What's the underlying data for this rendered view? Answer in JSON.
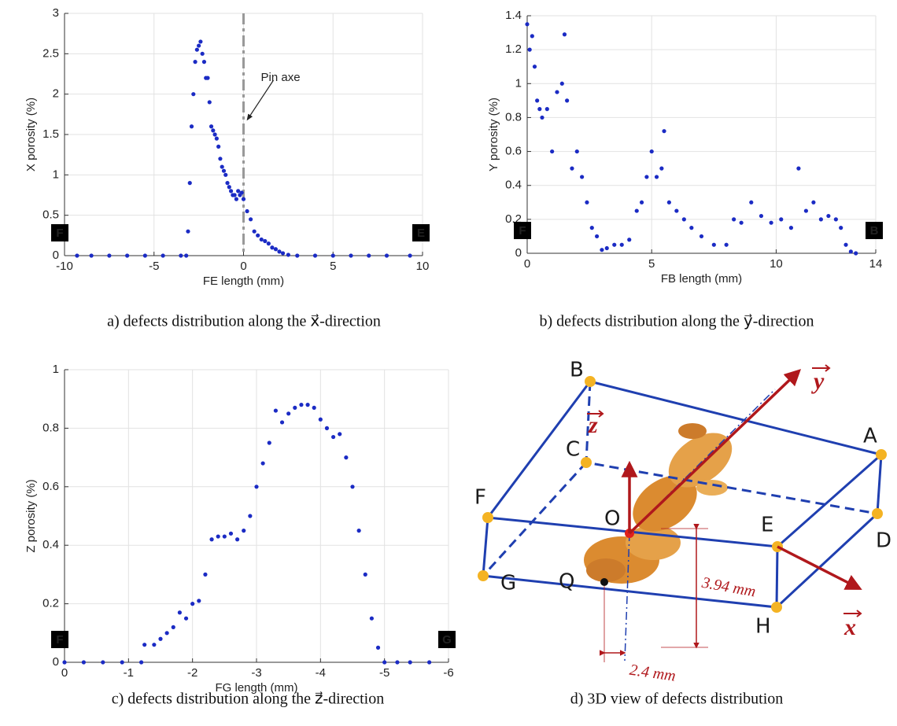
{
  "chart_data": [
    {
      "type": "scatter",
      "caption": "a) defects distribution along the x⃗-direction",
      "xlabel": "FE length (mm)",
      "ylabel": "X porosity (%)",
      "color": "#1b2bc4",
      "xlim": [
        -10,
        10
      ],
      "xticks": [
        -10,
        -5,
        0,
        5,
        10
      ],
      "ylim": [
        0,
        3
      ],
      "yticks": [
        0,
        0.5,
        1,
        1.5,
        2,
        2.5,
        3
      ],
      "grid": true,
      "start_label": "F",
      "end_label": "E",
      "vline": 0,
      "annotation": "Pin axe",
      "x": [
        -9.3,
        -8.5,
        -7.5,
        -6.5,
        -5.5,
        -4.5,
        -3.5,
        -3.2,
        -3.1,
        -3.0,
        -2.9,
        -2.8,
        -2.7,
        -2.6,
        -2.5,
        -2.4,
        -2.3,
        -2.2,
        -2.1,
        -2.0,
        -1.9,
        -1.8,
        -1.7,
        -1.6,
        -1.5,
        -1.4,
        -1.3,
        -1.2,
        -1.1,
        -1.0,
        -0.9,
        -0.8,
        -0.7,
        -0.6,
        -0.5,
        -0.4,
        -0.3,
        -0.2,
        -0.1,
        0,
        0.2,
        0.4,
        0.6,
        0.8,
        1.0,
        1.2,
        1.4,
        1.6,
        1.8,
        2.0,
        2.2,
        2.5,
        3,
        4,
        5,
        6,
        7,
        8,
        9.3
      ],
      "y": [
        0,
        0,
        0,
        0,
        0,
        0,
        0,
        0,
        0.3,
        0.9,
        1.6,
        2.0,
        2.4,
        2.55,
        2.6,
        2.65,
        2.5,
        2.4,
        2.2,
        2.2,
        1.9,
        1.6,
        1.55,
        1.5,
        1.45,
        1.35,
        1.2,
        1.1,
        1.05,
        1.0,
        0.9,
        0.85,
        0.8,
        0.75,
        0.75,
        0.7,
        0.8,
        0.75,
        0.78,
        0.7,
        0.55,
        0.45,
        0.3,
        0.25,
        0.2,
        0.18,
        0.15,
        0.1,
        0.08,
        0.05,
        0.03,
        0.01,
        0,
        0,
        0,
        0,
        0,
        0,
        0
      ]
    },
    {
      "type": "scatter",
      "caption": "b) defects distribution along the y⃗-direction",
      "xlabel": "FB length   (mm)",
      "ylabel": "Y porosity  (%)",
      "color": "#1b2bc4",
      "xlim": [
        0,
        14
      ],
      "xticks": [
        0,
        5,
        10,
        14
      ],
      "ylim": [
        0,
        1.4
      ],
      "yticks": [
        0,
        0.2,
        0.4,
        0.6,
        0.8,
        1,
        1.2,
        1.4
      ],
      "grid": true,
      "start_label": "F",
      "end_label": "B",
      "x": [
        0,
        0.1,
        0.2,
        0.3,
        0.4,
        0.5,
        0.6,
        0.8,
        1.0,
        1.2,
        1.4,
        1.5,
        1.6,
        1.8,
        2.0,
        2.2,
        2.4,
        2.6,
        2.8,
        3.0,
        3.2,
        3.5,
        3.8,
        4.1,
        4.4,
        4.6,
        4.8,
        5.0,
        5.2,
        5.4,
        5.5,
        5.7,
        6.0,
        6.3,
        6.6,
        7.0,
        7.5,
        8.0,
        8.3,
        8.6,
        9.0,
        9.4,
        9.8,
        10.2,
        10.6,
        10.9,
        11.2,
        11.5,
        11.8,
        12.1,
        12.4,
        12.6,
        12.8,
        13.0,
        13.2
      ],
      "y": [
        1.35,
        1.2,
        1.28,
        1.1,
        0.9,
        0.85,
        0.8,
        0.85,
        0.6,
        0.95,
        1.0,
        1.29,
        0.9,
        0.5,
        0.6,
        0.45,
        0.3,
        0.15,
        0.1,
        0.02,
        0.03,
        0.05,
        0.05,
        0.08,
        0.25,
        0.3,
        0.45,
        0.6,
        0.45,
        0.5,
        0.72,
        0.3,
        0.25,
        0.2,
        0.15,
        0.1,
        0.05,
        0.05,
        0.2,
        0.18,
        0.3,
        0.22,
        0.18,
        0.2,
        0.15,
        0.5,
        0.25,
        0.3,
        0.2,
        0.22,
        0.2,
        0.15,
        0.05,
        0.01,
        0
      ]
    },
    {
      "type": "scatter",
      "caption": "c) defects distribution along the z⃗-direction",
      "xlabel": "FG length   (mm)",
      "ylabel": "Z porosity (%)",
      "color": "#1b2bc4",
      "xlim": [
        0,
        -6
      ],
      "xticks": [
        0,
        -1,
        -2,
        -3,
        -4,
        -5,
        -6
      ],
      "ylim": [
        0,
        1
      ],
      "yticks": [
        0,
        0.2,
        0.4,
        0.6,
        0.8,
        1
      ],
      "grid": true,
      "start_label": "F",
      "end_label": "G",
      "x": [
        0,
        -0.3,
        -0.6,
        -0.9,
        -1.2,
        -1.25,
        -1.4,
        -1.5,
        -1.6,
        -1.7,
        -1.8,
        -1.9,
        -2.0,
        -2.1,
        -2.2,
        -2.3,
        -2.4,
        -2.5,
        -2.6,
        -2.7,
        -2.8,
        -2.9,
        -3.0,
        -3.1,
        -3.2,
        -3.3,
        -3.4,
        -3.5,
        -3.6,
        -3.7,
        -3.8,
        -3.9,
        -4.0,
        -4.1,
        -4.2,
        -4.3,
        -4.4,
        -4.5,
        -4.6,
        -4.7,
        -4.8,
        -4.9,
        -5.0,
        -5.2,
        -5.4,
        -5.7
      ],
      "y": [
        0,
        0,
        0,
        0,
        0,
        0.06,
        0.06,
        0.08,
        0.1,
        0.12,
        0.17,
        0.15,
        0.2,
        0.21,
        0.3,
        0.42,
        0.43,
        0.43,
        0.44,
        0.42,
        0.45,
        0.5,
        0.6,
        0.68,
        0.75,
        0.86,
        0.82,
        0.85,
        0.87,
        0.88,
        0.88,
        0.87,
        0.83,
        0.8,
        0.77,
        0.78,
        0.7,
        0.6,
        0.45,
        0.3,
        0.15,
        0.05,
        0,
        0,
        0,
        0
      ]
    }
  ],
  "diagram": {
    "caption": "d) 3D view of  defects distribution",
    "points": [
      "B",
      "A",
      "C",
      "F",
      "O",
      "D",
      "E",
      "Q",
      "G",
      "H"
    ],
    "axes": [
      "y",
      "z",
      "x"
    ],
    "dimensions": [
      "3.94 mm",
      "2.4 mm"
    ]
  }
}
